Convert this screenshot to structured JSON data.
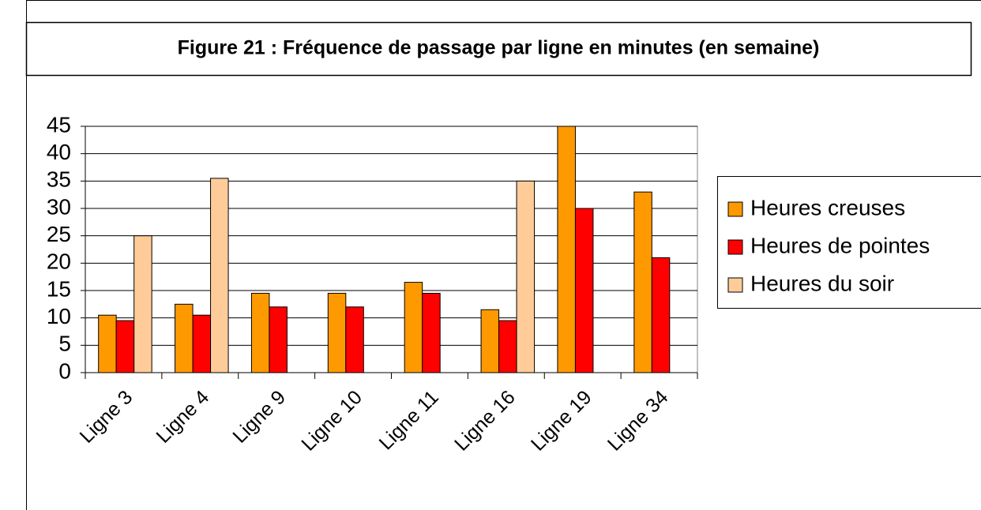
{
  "chart_data": {
    "type": "bar",
    "title": "Figure 21 : Fréquence de passage par ligne en minutes (en semaine)",
    "categories": [
      "Ligne 3",
      "Ligne 4",
      "Ligne 9",
      "Ligne 10",
      "Ligne 11",
      "Ligne 16",
      "Ligne 19",
      "Ligne 34"
    ],
    "series": [
      {
        "name": "Heures creuses",
        "color": "#ff9900",
        "values": [
          10.5,
          12.5,
          14.5,
          14.5,
          16.5,
          11.5,
          45,
          33
        ]
      },
      {
        "name": "Heures de pointes",
        "color": "#ff0000",
        "values": [
          9.5,
          10.5,
          12,
          12,
          14.5,
          9.5,
          30,
          21
        ]
      },
      {
        "name": "Heures du soir",
        "color": "#ffcc99",
        "values": [
          25,
          35.5,
          null,
          null,
          null,
          35,
          null,
          null
        ]
      }
    ],
    "ylim": [
      0,
      45
    ],
    "yticks": [
      0,
      5,
      10,
      15,
      20,
      25,
      30,
      35,
      40,
      45
    ],
    "grid": true,
    "legend": "right"
  }
}
